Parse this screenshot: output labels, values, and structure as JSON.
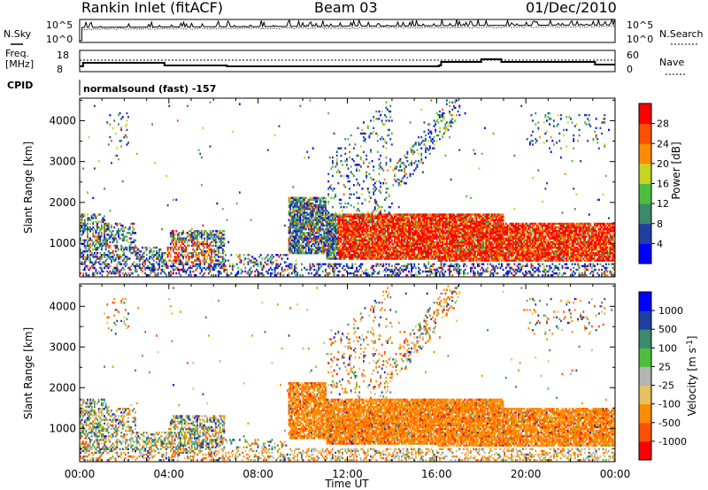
{
  "header": {
    "title": "Rankin Inlet (fitACF)",
    "beam": "Beam 03",
    "date": "01/Dec/2010"
  },
  "noise_panel": {
    "left_label": "N.Sky",
    "right_label": "N.Search",
    "left_ticks": [
      "10^5",
      "10^0"
    ],
    "right_ticks": [
      "10^5",
      "10^0"
    ]
  },
  "freq_panel": {
    "left_label_1": "Freq.",
    "left_label_2": "[MHz]",
    "left_ticks": [
      "18",
      "8"
    ],
    "right_label": "Nave",
    "right_ticks": [
      "60",
      "0"
    ]
  },
  "cpid_panel": {
    "label": "CPID",
    "program": "normalsound (fast) -157"
  },
  "colors": {
    "power": [
      "#0000ff",
      "#1f3fa3",
      "#3b8a6e",
      "#4cbf3c",
      "#c8d422",
      "#ff8c00",
      "#ff5000",
      "#ff0000"
    ],
    "velocity": [
      "#ff0000",
      "#ff5000",
      "#ff8c00",
      "#e8c060",
      "#b4b4b4",
      "#4cbf3c",
      "#3b8a6e",
      "#1f3fa3",
      "#0000ff"
    ]
  },
  "chart_data": [
    {
      "type": "heatmap",
      "name": "power",
      "ylabel": "Slant Range [km]",
      "xlabel": "",
      "xlim": [
        "00:00",
        "24:00"
      ],
      "ylim": [
        180,
        4550
      ],
      "y_ticks": [
        "1000",
        "2000",
        "3000",
        "4000"
      ],
      "x_ticks": [
        "00:00",
        "04:00",
        "08:00",
        "12:00",
        "16:00",
        "20:00",
        "00:00"
      ],
      "colorbar_label": "Power [dB]",
      "colorbar_ticks": [
        "4",
        "8",
        "12",
        "16",
        "20",
        "24",
        "28"
      ],
      "colorbar_range": [
        0,
        32
      ]
    },
    {
      "type": "heatmap",
      "name": "velocity",
      "ylabel": "Slant Range [km]",
      "xlabel": "Time UT",
      "xlim": [
        "00:00",
        "24:00"
      ],
      "ylim": [
        180,
        4550
      ],
      "y_ticks": [
        "1000",
        "2000",
        "3000",
        "4000"
      ],
      "x_ticks": [
        "00:00",
        "04:00",
        "08:00",
        "12:00",
        "16:00",
        "20:00",
        "00:00"
      ],
      "colorbar_label": "Velocity [m s^-1]",
      "colorbar_ticks": [
        "1000",
        "500",
        "100",
        "25",
        "-25",
        "-100",
        "-500",
        "-1000"
      ]
    }
  ]
}
